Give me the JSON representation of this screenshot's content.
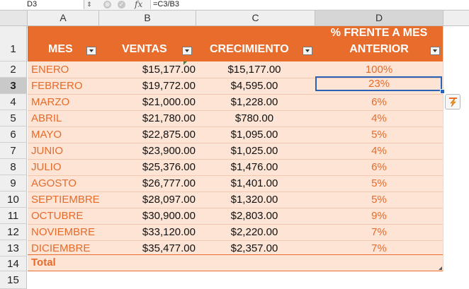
{
  "formula_bar": {
    "cell_ref": "D3",
    "fx": "fx",
    "formula": "=C3/B3",
    "cancel_icon": "⊗",
    "confirm_icon": "✓"
  },
  "columns": [
    "A",
    "B",
    "C",
    "D"
  ],
  "header": {
    "mes": "MES",
    "ventas": "VENTAS",
    "crecimiento": "CRECIMIENTO",
    "pct_line1": "% FRENTE A MES",
    "pct_line2": "ANTERIOR"
  },
  "row_numbers": [
    "1",
    "2",
    "3",
    "4",
    "5",
    "6",
    "7",
    "8",
    "9",
    "10",
    "11",
    "12",
    "13",
    "14",
    "15"
  ],
  "rows": [
    {
      "mes": "ENERO",
      "ventas": "$15,177.00",
      "crecimiento": "$15,177.00",
      "pct": "100%"
    },
    {
      "mes": "FEBRERO",
      "ventas": "$19,772.00",
      "crecimiento": "$4,595.00",
      "pct": "23%"
    },
    {
      "mes": "MARZO",
      "ventas": "$21,000.00",
      "crecimiento": "$1,228.00",
      "pct": "6%"
    },
    {
      "mes": "ABRIL",
      "ventas": "$21,780.00",
      "crecimiento": "$780.00",
      "pct": "4%"
    },
    {
      "mes": "MAYO",
      "ventas": "$22,875.00",
      "crecimiento": "$1,095.00",
      "pct": "5%"
    },
    {
      "mes": "JUNIO",
      "ventas": "$23,900.00",
      "crecimiento": "$1,025.00",
      "pct": "4%"
    },
    {
      "mes": "JULIO",
      "ventas": "$25,376.00",
      "crecimiento": "$1,476.00",
      "pct": "6%"
    },
    {
      "mes": "AGOSTO",
      "ventas": "$26,777.00",
      "crecimiento": "$1,401.00",
      "pct": "5%"
    },
    {
      "mes": "SEPTIEMBRE",
      "ventas": "$28,097.00",
      "crecimiento": "$1,320.00",
      "pct": "5%"
    },
    {
      "mes": "OCTUBRE",
      "ventas": "$30,900.00",
      "crecimiento": "$2,803.00",
      "pct": "9%"
    },
    {
      "mes": "NOVIEMBRE",
      "ventas": "$33,120.00",
      "crecimiento": "$2,220.00",
      "pct": "7%"
    },
    {
      "mes": "DICIEMBRE",
      "ventas": "$35,477.00",
      "crecimiento": "$2,357.00",
      "pct": "7%"
    }
  ],
  "total_label": "Total",
  "colors": {
    "header_orange": "#e86c2c",
    "body_peach": "#fde4d5",
    "text_orange": "#e56b2a",
    "selection_blue": "#2a62b8"
  }
}
